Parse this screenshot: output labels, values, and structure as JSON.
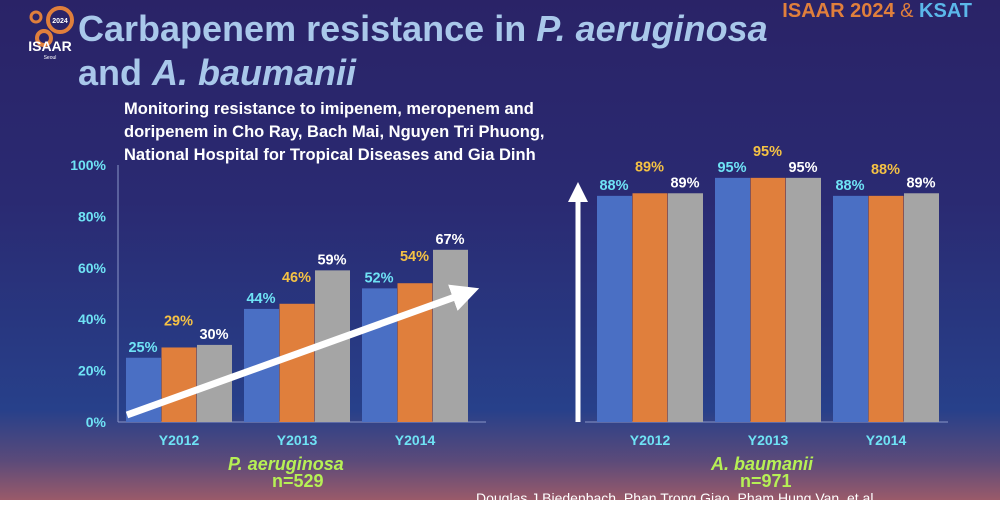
{
  "header": {
    "title_line1_prefix": "Carbapenem resistance in ",
    "title_line1_italic": "P. aeruginosa",
    "title_line2_prefix": "and ",
    "title_line2_italic": "A. baumanii",
    "brand_isaar": "ISAAR 2024",
    "brand_amp": " & ",
    "brand_ksat": "KSAT",
    "logo_year": "2024",
    "logo_name": "ISAAR",
    "logo_city": "Seoul"
  },
  "subtitle": "Monitoring resistance to imipenem, meropenem and doripenem in Cho Ray, Bach Mai, Nguyen Tri Phuong, National Hospital for Tropical Diseases and Gia Dinh",
  "footer": "Douglas J Biedenbach, Phan Trong Giao, Pham Hung Van, et al",
  "colors": {
    "series1": "#4a6fc4",
    "series2": "#e07f3c",
    "series3": "#a5a5a5",
    "label1": "#6fe3f5",
    "label2": "#f5c244",
    "label3": "#ffffff"
  },
  "chart_data": [
    {
      "type": "bar",
      "species": "P. aeruginosa",
      "n_label": "n=529",
      "categories": [
        "Y2012",
        "Y2013",
        "Y2014"
      ],
      "series": [
        {
          "values": [
            25,
            44,
            52
          ]
        },
        {
          "values": [
            29,
            46,
            54
          ]
        },
        {
          "values": [
            30,
            59,
            67
          ]
        }
      ],
      "ylim": [
        0,
        100
      ],
      "yticks": [
        "0%",
        "20%",
        "40%",
        "60%",
        "80%",
        "100%"
      ],
      "annotation": "increasing-trend-arrow"
    },
    {
      "type": "bar",
      "species": "A. baumanii",
      "n_label": "n=971",
      "categories": [
        "Y2012",
        "Y2013",
        "Y2014"
      ],
      "series": [
        {
          "values": [
            88,
            95,
            88
          ]
        },
        {
          "values": [
            89,
            95,
            88
          ]
        },
        {
          "values": [
            89,
            95,
            89
          ]
        }
      ],
      "ylim": [
        0,
        100
      ],
      "annotation": "upward-arrow"
    }
  ]
}
